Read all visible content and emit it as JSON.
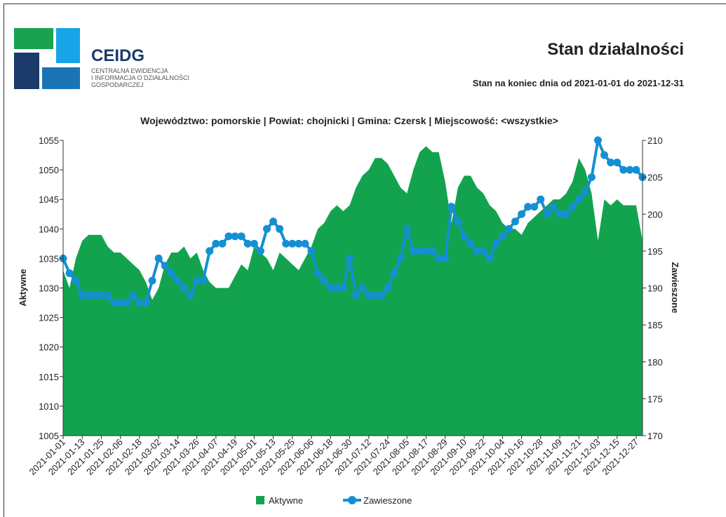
{
  "header": {
    "logo_text": "CEIDG",
    "logo_lines": [
      "CENTRALNA EWIDENCJA",
      "I INFORMACJA O DZIAŁALNOŚCI",
      "GOSPODARCZEJ"
    ],
    "title": "Stan działalności",
    "subtitle": "Stan na koniec dnia od 2021-01-01 do 2021-12-31"
  },
  "chart_data": {
    "type": "area_line",
    "title": "Województwo: pomorskie | Powiat: chojnicki | Gmina: Czersk | Miejscowość: <wszystkie>",
    "y_label": "Aktywne",
    "y2_label": "Zawieszone",
    "x": [
      "2021-01-01",
      "2021-01-05",
      "2021-01-09",
      "2021-01-13",
      "2021-01-17",
      "2021-01-21",
      "2021-01-25",
      "2021-01-29",
      "2021-02-02",
      "2021-02-06",
      "2021-02-10",
      "2021-02-14",
      "2021-02-18",
      "2021-02-22",
      "2021-02-26",
      "2021-03-02",
      "2021-03-06",
      "2021-03-10",
      "2021-03-14",
      "2021-03-18",
      "2021-03-22",
      "2021-03-26",
      "2021-03-30",
      "2021-04-03",
      "2021-04-07",
      "2021-04-11",
      "2021-04-15",
      "2021-04-19",
      "2021-04-23",
      "2021-04-27",
      "2021-05-01",
      "2021-05-05",
      "2021-05-09",
      "2021-05-13",
      "2021-05-17",
      "2021-05-21",
      "2021-05-25",
      "2021-05-29",
      "2021-06-02",
      "2021-06-06",
      "2021-06-10",
      "2021-06-14",
      "2021-06-18",
      "2021-06-22",
      "2021-06-26",
      "2021-06-30",
      "2021-07-04",
      "2021-07-08",
      "2021-07-12",
      "2021-07-16",
      "2021-07-20",
      "2021-07-24",
      "2021-07-28",
      "2021-08-01",
      "2021-08-05",
      "2021-08-09",
      "2021-08-13",
      "2021-08-17",
      "2021-08-21",
      "2021-08-25",
      "2021-08-29",
      "2021-09-02",
      "2021-09-06",
      "2021-09-10",
      "2021-09-14",
      "2021-09-18",
      "2021-09-22",
      "2021-09-26",
      "2021-09-30",
      "2021-10-04",
      "2021-10-08",
      "2021-10-12",
      "2021-10-16",
      "2021-10-20",
      "2021-10-24",
      "2021-10-28",
      "2021-11-01",
      "2021-11-05",
      "2021-11-09",
      "2021-11-13",
      "2021-11-17",
      "2021-11-21",
      "2021-11-25",
      "2021-11-29",
      "2021-12-03",
      "2021-12-07",
      "2021-12-11",
      "2021-12-15",
      "2021-12-19",
      "2021-12-23",
      "2021-12-27",
      "2021-12-31"
    ],
    "xticks": [
      "2021-01-01",
      "2021-01-13",
      "2021-01-25",
      "2021-02-06",
      "2021-02-18",
      "2021-03-02",
      "2021-03-14",
      "2021-03-26",
      "2021-04-07",
      "2021-04-19",
      "2021-05-01",
      "2021-05-13",
      "2021-05-25",
      "2021-06-06",
      "2021-06-18",
      "2021-06-30",
      "2021-07-12",
      "2021-07-24",
      "2021-08-05",
      "2021-08-17",
      "2021-08-29",
      "2021-09-10",
      "2021-09-22",
      "2021-10-04",
      "2021-10-16",
      "2021-10-28",
      "2021-11-09",
      "2021-11-21",
      "2021-12-03",
      "2021-12-15",
      "2021-12-27"
    ],
    "ylim": [
      1005,
      1055
    ],
    "yticks": [
      1005,
      1010,
      1015,
      1020,
      1025,
      1030,
      1035,
      1040,
      1045,
      1050,
      1055
    ],
    "y2lim": [
      170,
      210
    ],
    "y2ticks": [
      170,
      175,
      180,
      185,
      190,
      195,
      200,
      205,
      210
    ],
    "series": [
      {
        "name": "Aktywne",
        "kind": "area",
        "color": "#13a34f",
        "values": [
          1033,
          1030,
          1035,
          1038,
          1039,
          1039,
          1039,
          1037,
          1036,
          1036,
          1035,
          1034,
          1033,
          1031,
          1028,
          1030,
          1034,
          1036,
          1036,
          1037,
          1035,
          1036,
          1033,
          1031,
          1030,
          1030,
          1030,
          1032,
          1034,
          1033,
          1037,
          1036,
          1035,
          1033,
          1036,
          1035,
          1034,
          1033,
          1035,
          1037,
          1040,
          1041,
          1043,
          1044,
          1043,
          1044,
          1047,
          1049,
          1050,
          1052,
          1052,
          1051,
          1049,
          1047,
          1046,
          1050,
          1053,
          1054,
          1053,
          1053,
          1048,
          1041,
          1047,
          1049,
          1049,
          1047,
          1046,
          1044,
          1043,
          1041,
          1040,
          1040,
          1039,
          1041,
          1042,
          1043,
          1044,
          1045,
          1045,
          1046,
          1048,
          1052,
          1050,
          1046,
          1038,
          1045,
          1044,
          1045,
          1044,
          1044,
          1044,
          1038
        ]
      },
      {
        "name": "Zawieszone",
        "kind": "line",
        "axis": "y2",
        "color": "#1490d2",
        "values": [
          194,
          192,
          191,
          189,
          189,
          189,
          189,
          189,
          188,
          188,
          188,
          189,
          188,
          188,
          191,
          194,
          193,
          192,
          191,
          190,
          189,
          191,
          191,
          195,
          196,
          196,
          197,
          197,
          197,
          196,
          196,
          195,
          198,
          199,
          198,
          196,
          196,
          196,
          196,
          195,
          192,
          191,
          190,
          190,
          190,
          194,
          189,
          190,
          189,
          189,
          189,
          190,
          192,
          194,
          198,
          195,
          195,
          195,
          195,
          194,
          194,
          201,
          199,
          197,
          196,
          195,
          195,
          194,
          196,
          197,
          198,
          199,
          200,
          201,
          201,
          202,
          200,
          201,
          200,
          200,
          201,
          202,
          203,
          205,
          210,
          208,
          207,
          207,
          206,
          206,
          206,
          205
        ]
      }
    ]
  }
}
